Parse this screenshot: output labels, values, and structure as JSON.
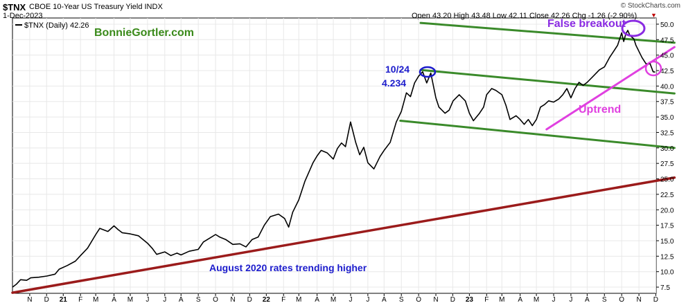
{
  "header": {
    "symbol": "$TNX",
    "description": "CBOE 10-Year US Treasury Yield INDX",
    "date": "1-Dec-2023",
    "watermark": "© StockCharts.com",
    "ohlc": "Open 43.20  High 43.48  Low 42.11  Close 42.26  Chg -1.26 (-2.90%)",
    "chg_marker": "▼",
    "legend": "$TNX (Daily) 42.26"
  },
  "colors": {
    "price": "#000000",
    "green_channel": "#3a8a2a",
    "long_trend": "#9b1b1b",
    "uptrend": "#e040e0",
    "blue_text": "#1c1ccc",
    "site_green": "#3a8a1a",
    "false_breakout": "#8a2be2",
    "grid": "#e8e8e8"
  },
  "chart_data": {
    "type": "line",
    "title": "$TNX CBOE 10-Year US Treasury Yield INDX",
    "ylim": [
      6.5,
      51
    ],
    "yticks": [
      7.5,
      10.0,
      12.5,
      15.0,
      17.5,
      20.0,
      22.5,
      25.0,
      27.5,
      30.0,
      32.5,
      35.0,
      37.5,
      40.0,
      42.5,
      45.0,
      47.5,
      50.0
    ],
    "xlim": [
      2020.79,
      2023.96
    ],
    "x_ticks": [
      {
        "x": 2020.875,
        "label": "N"
      },
      {
        "x": 2020.958,
        "label": "D"
      },
      {
        "x": 2021.04,
        "label": "21"
      },
      {
        "x": 2021.125,
        "label": "F"
      },
      {
        "x": 2021.2,
        "label": "M"
      },
      {
        "x": 2021.29,
        "label": "A"
      },
      {
        "x": 2021.37,
        "label": "M"
      },
      {
        "x": 2021.455,
        "label": "J"
      },
      {
        "x": 2021.54,
        "label": "J"
      },
      {
        "x": 2021.62,
        "label": "A"
      },
      {
        "x": 2021.705,
        "label": "S"
      },
      {
        "x": 2021.79,
        "label": "O"
      },
      {
        "x": 2021.875,
        "label": "N"
      },
      {
        "x": 2021.958,
        "label": "D"
      },
      {
        "x": 2022.04,
        "label": "22"
      },
      {
        "x": 2022.125,
        "label": "F"
      },
      {
        "x": 2022.2,
        "label": "M"
      },
      {
        "x": 2022.29,
        "label": "A"
      },
      {
        "x": 2022.37,
        "label": "M"
      },
      {
        "x": 2022.455,
        "label": "J"
      },
      {
        "x": 2022.54,
        "label": "J"
      },
      {
        "x": 2022.62,
        "label": "A"
      },
      {
        "x": 2022.705,
        "label": "S"
      },
      {
        "x": 2022.79,
        "label": "O"
      },
      {
        "x": 2022.875,
        "label": "N"
      },
      {
        "x": 2022.958,
        "label": "D"
      },
      {
        "x": 2023.04,
        "label": "23"
      },
      {
        "x": 2023.125,
        "label": "F"
      },
      {
        "x": 2023.2,
        "label": "M"
      },
      {
        "x": 2023.29,
        "label": "A"
      },
      {
        "x": 2023.37,
        "label": "M"
      },
      {
        "x": 2023.455,
        "label": "J"
      },
      {
        "x": 2023.54,
        "label": "J"
      },
      {
        "x": 2023.62,
        "label": "A"
      },
      {
        "x": 2023.705,
        "label": "S"
      },
      {
        "x": 2023.79,
        "label": "O"
      },
      {
        "x": 2023.875,
        "label": "N"
      },
      {
        "x": 2023.958,
        "label": "D"
      }
    ],
    "series": [
      {
        "name": "$TNX (Daily) 42.26",
        "points": [
          [
            2020.79,
            7.5
          ],
          [
            2020.81,
            8.0
          ],
          [
            2020.83,
            8.7
          ],
          [
            2020.86,
            8.6
          ],
          [
            2020.88,
            9.0
          ],
          [
            2020.92,
            9.1
          ],
          [
            2020.96,
            9.3
          ],
          [
            2021.0,
            9.6
          ],
          [
            2021.02,
            10.4
          ],
          [
            2021.06,
            11.0
          ],
          [
            2021.1,
            11.7
          ],
          [
            2021.125,
            12.6
          ],
          [
            2021.16,
            13.8
          ],
          [
            2021.2,
            16.0
          ],
          [
            2021.22,
            17.0
          ],
          [
            2021.26,
            16.5
          ],
          [
            2021.29,
            17.4
          ],
          [
            2021.31,
            16.8
          ],
          [
            2021.33,
            16.3
          ],
          [
            2021.37,
            16.1
          ],
          [
            2021.41,
            15.8
          ],
          [
            2021.455,
            14.6
          ],
          [
            2021.48,
            13.7
          ],
          [
            2021.5,
            12.8
          ],
          [
            2021.54,
            13.2
          ],
          [
            2021.57,
            12.6
          ],
          [
            2021.6,
            13.0
          ],
          [
            2021.62,
            12.7
          ],
          [
            2021.66,
            13.3
          ],
          [
            2021.705,
            13.6
          ],
          [
            2021.73,
            14.8
          ],
          [
            2021.76,
            15.4
          ],
          [
            2021.79,
            16.0
          ],
          [
            2021.81,
            15.6
          ],
          [
            2021.84,
            15.2
          ],
          [
            2021.875,
            14.4
          ],
          [
            2021.91,
            14.5
          ],
          [
            2021.94,
            14.0
          ],
          [
            2021.97,
            15.2
          ],
          [
            2022.0,
            15.6
          ],
          [
            2022.03,
            17.5
          ],
          [
            2022.06,
            18.9
          ],
          [
            2022.1,
            19.3
          ],
          [
            2022.13,
            18.6
          ],
          [
            2022.15,
            17.2
          ],
          [
            2022.17,
            19.6
          ],
          [
            2022.2,
            21.6
          ],
          [
            2022.23,
            24.6
          ],
          [
            2022.27,
            27.6
          ],
          [
            2022.29,
            28.7
          ],
          [
            2022.31,
            29.6
          ],
          [
            2022.34,
            29.2
          ],
          [
            2022.37,
            28.2
          ],
          [
            2022.39,
            29.9
          ],
          [
            2022.41,
            30.8
          ],
          [
            2022.43,
            30.2
          ],
          [
            2022.455,
            34.2
          ],
          [
            2022.48,
            30.9
          ],
          [
            2022.5,
            28.9
          ],
          [
            2022.52,
            30.1
          ],
          [
            2022.54,
            27.6
          ],
          [
            2022.57,
            26.6
          ],
          [
            2022.6,
            28.6
          ],
          [
            2022.62,
            29.6
          ],
          [
            2022.65,
            30.9
          ],
          [
            2022.68,
            34.2
          ],
          [
            2022.705,
            35.9
          ],
          [
            2022.73,
            38.9
          ],
          [
            2022.75,
            38.3
          ],
          [
            2022.77,
            40.5
          ],
          [
            2022.79,
            41.6
          ],
          [
            2022.81,
            42.3
          ],
          [
            2022.83,
            40.5
          ],
          [
            2022.85,
            42.1
          ],
          [
            2022.875,
            38.1
          ],
          [
            2022.89,
            36.6
          ],
          [
            2022.92,
            35.6
          ],
          [
            2022.94,
            36.1
          ],
          [
            2022.96,
            37.6
          ],
          [
            2022.99,
            38.6
          ],
          [
            2023.02,
            37.6
          ],
          [
            2023.04,
            35.6
          ],
          [
            2023.06,
            34.4
          ],
          [
            2023.09,
            35.6
          ],
          [
            2023.11,
            36.6
          ],
          [
            2023.125,
            38.6
          ],
          [
            2023.15,
            39.6
          ],
          [
            2023.17,
            39.3
          ],
          [
            2023.2,
            38.6
          ],
          [
            2023.22,
            36.9
          ],
          [
            2023.24,
            34.6
          ],
          [
            2023.27,
            35.2
          ],
          [
            2023.29,
            34.6
          ],
          [
            2023.31,
            33.8
          ],
          [
            2023.33,
            34.6
          ],
          [
            2023.35,
            33.6
          ],
          [
            2023.37,
            34.6
          ],
          [
            2023.39,
            36.6
          ],
          [
            2023.41,
            37.0
          ],
          [
            2023.43,
            37.6
          ],
          [
            2023.455,
            37.4
          ],
          [
            2023.48,
            37.9
          ],
          [
            2023.5,
            38.6
          ],
          [
            2023.52,
            39.6
          ],
          [
            2023.54,
            38.1
          ],
          [
            2023.56,
            39.6
          ],
          [
            2023.58,
            40.6
          ],
          [
            2023.6,
            40.1
          ],
          [
            2023.62,
            40.6
          ],
          [
            2023.65,
            41.6
          ],
          [
            2023.68,
            42.6
          ],
          [
            2023.705,
            43.1
          ],
          [
            2023.73,
            44.6
          ],
          [
            2023.75,
            45.6
          ],
          [
            2023.77,
            46.6
          ],
          [
            2023.79,
            48.6
          ],
          [
            2023.8,
            47.2
          ],
          [
            2023.81,
            48.4
          ],
          [
            2023.82,
            49.0
          ],
          [
            2023.83,
            48.2
          ],
          [
            2023.85,
            47.6
          ],
          [
            2023.86,
            46.6
          ],
          [
            2023.875,
            45.6
          ],
          [
            2023.89,
            44.6
          ],
          [
            2023.91,
            43.6
          ],
          [
            2023.93,
            43.6
          ],
          [
            2023.945,
            42.3
          ],
          [
            2023.955,
            42.26
          ]
        ]
      }
    ],
    "trendlines": [
      {
        "color": "green_channel",
        "x1": 2022.8,
        "y1": 50.2,
        "x2": 2024.05,
        "y2": 47.0
      },
      {
        "color": "green_channel",
        "x1": 2022.8,
        "y1": 42.6,
        "x2": 2024.05,
        "y2": 38.8
      },
      {
        "color": "green_channel",
        "x1": 2022.7,
        "y1": 34.4,
        "x2": 2024.05,
        "y2": 30.0
      },
      {
        "color": "uptrend",
        "x1": 2023.42,
        "y1": 33.0,
        "x2": 2024.05,
        "y2": 46.3
      },
      {
        "color": "long_trend",
        "x1": 2020.79,
        "y1": 6.6,
        "x2": 2024.05,
        "y2": 25.2
      }
    ],
    "annotations": {
      "site": "BonnieGortler.com",
      "false_breakout": "False breakout",
      "peak_date": "10/24",
      "peak_value": "4.234",
      "uptrend": "Uptrend",
      "long_trend": "August 2020 rates trending higher"
    },
    "grid": true,
    "y_axis_side": "right"
  }
}
